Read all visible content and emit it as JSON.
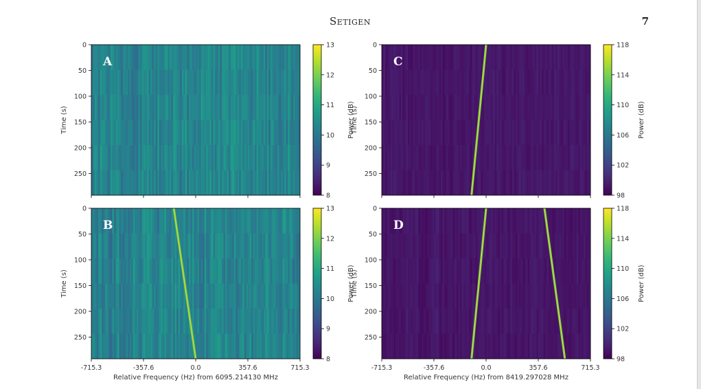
{
  "page": {
    "running_head": "Setigen",
    "page_number": "7"
  },
  "figure": {
    "colormap": "viridis",
    "axis_colors": {
      "frame": "#000000",
      "text": "#333333"
    },
    "chart_data": [
      {
        "type": "heatmap",
        "panel_label": "A",
        "ylabel": "Time (s)",
        "ylim": [
          0,
          292
        ],
        "yticks": [
          0,
          50,
          100,
          150,
          200,
          250
        ],
        "xlim": [
          -715.3,
          715.3
        ],
        "colorbar": {
          "label": "Power (dB)",
          "range": [
            8,
            13
          ],
          "ticks": [
            13,
            12,
            11,
            10,
            9,
            8
          ]
        },
        "description": "Noise only",
        "signals": []
      },
      {
        "type": "heatmap",
        "panel_label": "C",
        "ylabel": "Time (s)",
        "ylim": [
          0,
          292
        ],
        "yticks": [
          0,
          50,
          100,
          150,
          200,
          250
        ],
        "xlim": [
          -715.3,
          715.3
        ],
        "colorbar": {
          "label": "Power (dB)",
          "range": [
            98,
            118
          ],
          "ticks": [
            118,
            114,
            110,
            106,
            102,
            98
          ]
        },
        "signals": [
          {
            "f_start": 0.0,
            "f_end": -100.0
          }
        ]
      },
      {
        "type": "heatmap",
        "panel_label": "B",
        "ylabel": "Time (s)",
        "ylim": [
          0,
          292
        ],
        "yticks": [
          0,
          50,
          100,
          150,
          200,
          250
        ],
        "xlim": [
          -715.3,
          715.3
        ],
        "xticks": [
          "-715.3",
          "-357.6",
          "0.0",
          "357.6",
          "715.3"
        ],
        "xlabel": "Relative Frequency (Hz) from 6095.214130 MHz",
        "colorbar": {
          "label": "Power (dB)",
          "range": [
            8,
            13
          ],
          "ticks": [
            13,
            12,
            11,
            10,
            9,
            8
          ]
        },
        "signals": [
          {
            "f_start": -150.0,
            "f_end": 0.0
          }
        ]
      },
      {
        "type": "heatmap",
        "panel_label": "D",
        "ylabel": "Time (s)",
        "ylim": [
          0,
          292
        ],
        "yticks": [
          0,
          50,
          100,
          150,
          200,
          250
        ],
        "xlim": [
          -715.3,
          715.3
        ],
        "xticks": [
          "-715.3",
          "-357.6",
          "0.0",
          "357.6",
          "715.3"
        ],
        "xlabel": "Relative Frequency (Hz) from 8419.297028 MHz",
        "colorbar": {
          "label": "Power (dB)",
          "range": [
            98,
            118
          ],
          "ticks": [
            118,
            114,
            110,
            106,
            102,
            98
          ]
        },
        "signals": [
          {
            "f_start": 0.0,
            "f_end": -100.0
          },
          {
            "f_start": 400.0,
            "f_end": 540.0
          }
        ]
      }
    ]
  }
}
